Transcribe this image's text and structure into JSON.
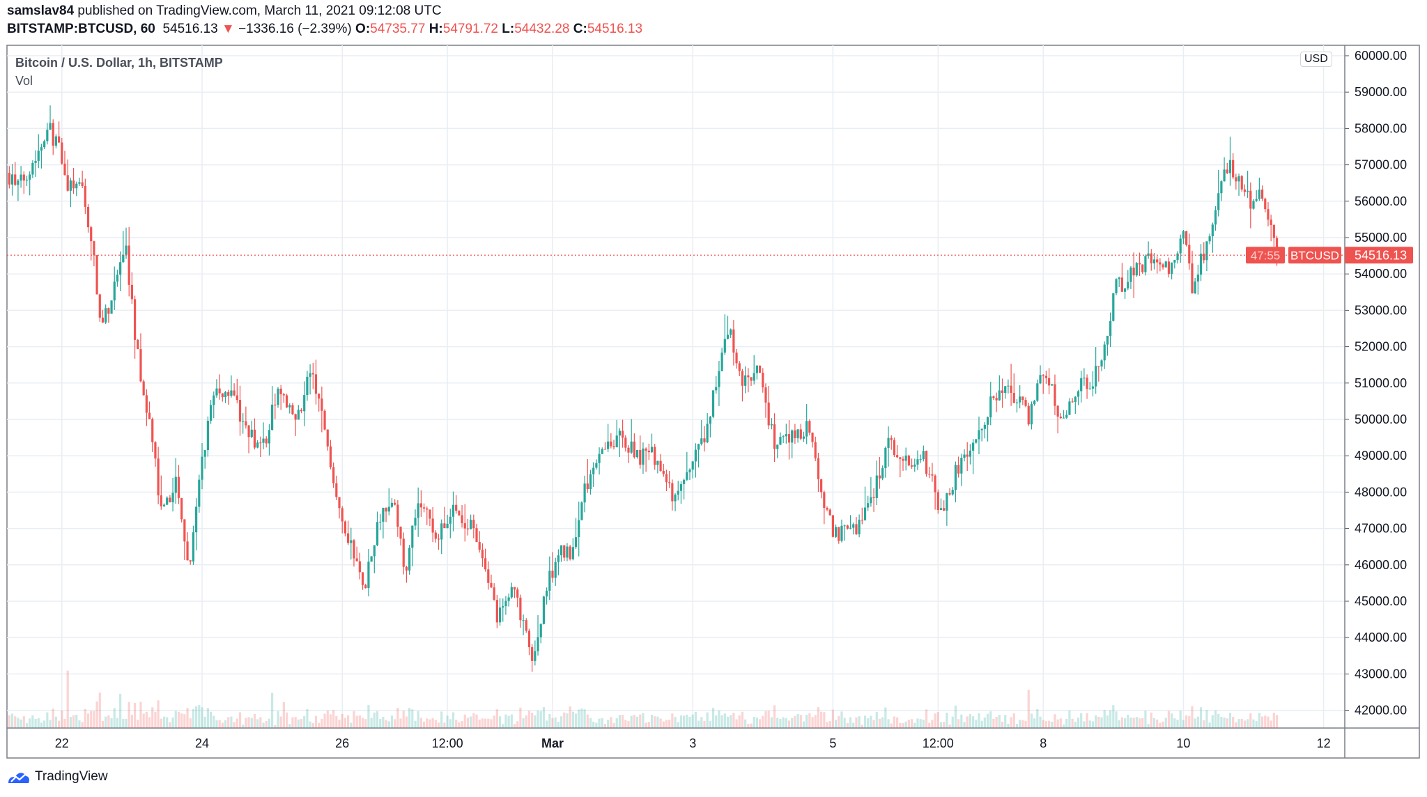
{
  "header": {
    "author": "samslav84",
    "published": " published on TradingView.com, March 11, 2021 09:12:08 UTC",
    "symbol": "BITSTAMP:BTCUSD, 60",
    "last": "54516.13",
    "change": "−1336.16 (−2.39%)",
    "o_label": "O:",
    "o": "54735.77",
    "h_label": "H:",
    "h": "54791.72",
    "l_label": "L:",
    "l": "54432.28",
    "c_label": "C:",
    "c": "54516.13"
  },
  "legend": {
    "title": "Bitcoin / U.S. Dollar, 1h, BITSTAMP",
    "vol": "Vol"
  },
  "currency": "USD",
  "price_label": {
    "symbol": "BTCUSD",
    "price": "54516.13",
    "countdown": "47:55"
  },
  "footer": {
    "brand": "TradingView"
  },
  "colors": {
    "up": "#26a69a",
    "down": "#ef5350",
    "grid": "#e9eef3"
  },
  "chart_data": {
    "type": "candlestick",
    "title": "Bitcoin / U.S. Dollar, 1h, BITSTAMP",
    "interval": "1h",
    "ylim": [
      41700,
      60300
    ],
    "y_ticks": [
      "60000.00",
      "59000.00",
      "58000.00",
      "57000.00",
      "56000.00",
      "55000.00",
      "54000.00",
      "53000.00",
      "52000.00",
      "51000.00",
      "50000.00",
      "49000.00",
      "48000.00",
      "47000.00",
      "46000.00",
      "45000.00",
      "44000.00",
      "43000.00",
      "42000.00"
    ],
    "x_ticks": [
      {
        "label": "22",
        "day": 0
      },
      {
        "label": "24",
        "day": 2
      },
      {
        "label": "26",
        "day": 4
      },
      {
        "label": "12:00",
        "day": 5.5
      },
      {
        "label": "Mar",
        "day": 7
      },
      {
        "label": "3",
        "day": 9
      },
      {
        "label": "5",
        "day": 11
      },
      {
        "label": "12:00",
        "day": 12.5
      },
      {
        "label": "8",
        "day": 14
      },
      {
        "label": "10",
        "day": 16
      },
      {
        "label": "12",
        "day": 18
      }
    ],
    "x_origin": "2021-02-22 00:00 UTC",
    "close_path_day_price": [
      [
        -0.78,
        56780
      ],
      [
        -0.62,
        56400
      ],
      [
        -0.3,
        57500
      ],
      [
        -0.21,
        58150
      ],
      [
        -0.04,
        57400
      ],
      [
        0.05,
        56500
      ],
      [
        0.29,
        56300
      ],
      [
        0.42,
        54900
      ],
      [
        0.57,
        52500
      ],
      [
        0.74,
        53500
      ],
      [
        0.91,
        54800
      ],
      [
        1.06,
        52000
      ],
      [
        1.26,
        49800
      ],
      [
        1.43,
        47300
      ],
      [
        1.65,
        48300
      ],
      [
        1.82,
        45800
      ],
      [
        2.0,
        48800
      ],
      [
        2.17,
        50800
      ],
      [
        2.43,
        50800
      ],
      [
        2.62,
        49600
      ],
      [
        2.88,
        49300
      ],
      [
        3.08,
        50800
      ],
      [
        3.34,
        49800
      ],
      [
        3.53,
        51400
      ],
      [
        3.73,
        50000
      ],
      [
        3.92,
        48000
      ],
      [
        4.12,
        46500
      ],
      [
        4.31,
        45300
      ],
      [
        4.47,
        46800
      ],
      [
        4.7,
        48000
      ],
      [
        4.9,
        45800
      ],
      [
        5.09,
        47800
      ],
      [
        5.35,
        46800
      ],
      [
        5.61,
        47500
      ],
      [
        5.81,
        47100
      ],
      [
        6.0,
        46300
      ],
      [
        6.2,
        44500
      ],
      [
        6.45,
        45300
      ],
      [
        6.71,
        43300
      ],
      [
        6.91,
        45300
      ],
      [
        7.1,
        46500
      ],
      [
        7.27,
        46200
      ],
      [
        7.43,
        47900
      ],
      [
        7.69,
        49300
      ],
      [
        7.95,
        49500
      ],
      [
        8.21,
        49000
      ],
      [
        8.47,
        49000
      ],
      [
        8.73,
        47700
      ],
      [
        8.92,
        48500
      ],
      [
        9.18,
        49500
      ],
      [
        9.38,
        51500
      ],
      [
        9.51,
        52500
      ],
      [
        9.7,
        51000
      ],
      [
        9.96,
        51300
      ],
      [
        10.16,
        49300
      ],
      [
        10.42,
        49500
      ],
      [
        10.68,
        49800
      ],
      [
        10.81,
        47900
      ],
      [
        11.04,
        46800
      ],
      [
        11.32,
        47000
      ],
      [
        11.58,
        48000
      ],
      [
        11.78,
        49300
      ],
      [
        12.1,
        48800
      ],
      [
        12.3,
        48900
      ],
      [
        12.56,
        47400
      ],
      [
        12.75,
        48500
      ],
      [
        13.01,
        49300
      ],
      [
        13.27,
        50500
      ],
      [
        13.53,
        50800
      ],
      [
        13.79,
        50100
      ],
      [
        13.99,
        51500
      ],
      [
        14.25,
        50000
      ],
      [
        14.51,
        51000
      ],
      [
        14.7,
        51000
      ],
      [
        14.9,
        52000
      ],
      [
        15.03,
        53600
      ],
      [
        15.29,
        54000
      ],
      [
        15.55,
        54500
      ],
      [
        15.81,
        54000
      ],
      [
        16.0,
        55300
      ],
      [
        16.13,
        53500
      ],
      [
        16.32,
        54800
      ],
      [
        16.52,
        56300
      ],
      [
        16.65,
        57000
      ],
      [
        16.84,
        56500
      ],
      [
        16.97,
        55800
      ],
      [
        17.1,
        56200
      ],
      [
        17.23,
        55300
      ],
      [
        17.34,
        54516.13
      ]
    ],
    "last_price": 54516.13
  }
}
